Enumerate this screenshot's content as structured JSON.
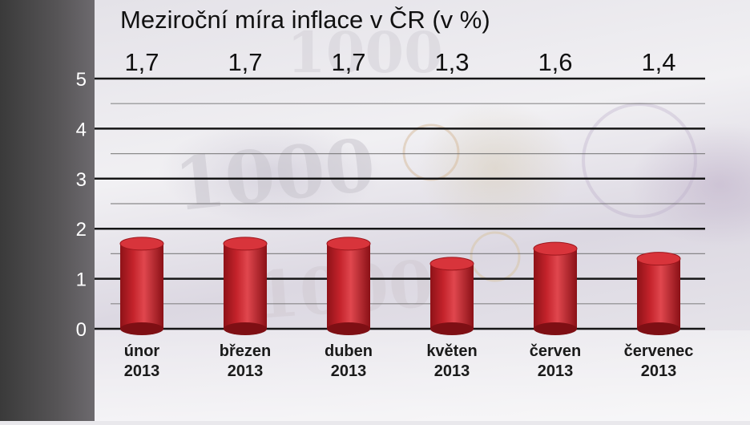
{
  "chart_data": {
    "type": "bar",
    "title": "Meziroční míra inflace v ČR (v %)",
    "categories": [
      "únor 2013",
      "březen 2013",
      "duben 2013",
      "květen 2013",
      "červen 2013",
      "červenec 2013"
    ],
    "category_lines": [
      [
        "únor",
        "2013"
      ],
      [
        "březen",
        "2013"
      ],
      [
        "duben",
        "2013"
      ],
      [
        "květen",
        "2013"
      ],
      [
        "červen",
        "2013"
      ],
      [
        "červenec",
        "2013"
      ]
    ],
    "values": [
      1.7,
      1.7,
      1.7,
      1.3,
      1.6,
      1.4
    ],
    "value_labels": [
      "1,7",
      "1,7",
      "1,7",
      "1,3",
      "1,6",
      "1,4"
    ],
    "ylim": [
      0,
      5
    ],
    "yticks": [
      0,
      1,
      2,
      3,
      4,
      5
    ],
    "grid": true,
    "bar_color": "#c4232b",
    "bar_top_color": "#d8343b",
    "xlabel": "",
    "ylabel": ""
  }
}
